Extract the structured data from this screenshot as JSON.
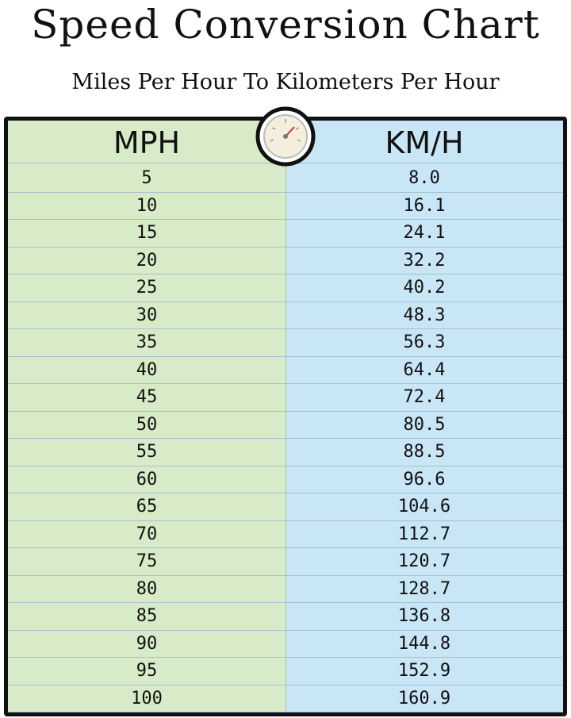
{
  "header": {
    "title": "Speed Conversion Chart",
    "subtitle": "Miles Per Hour To Kilometers Per Hour"
  },
  "table": {
    "columns": [
      "MPH",
      "KM/H"
    ],
    "rows": [
      [
        5,
        "8.0"
      ],
      [
        10,
        "16.1"
      ],
      [
        15,
        "24.1"
      ],
      [
        20,
        "32.2"
      ],
      [
        25,
        "40.2"
      ],
      [
        30,
        "48.3"
      ],
      [
        35,
        "56.3"
      ],
      [
        40,
        "64.4"
      ],
      [
        45,
        "72.4"
      ],
      [
        50,
        "80.5"
      ],
      [
        55,
        "88.5"
      ],
      [
        60,
        "96.6"
      ],
      [
        65,
        "104.6"
      ],
      [
        70,
        "112.7"
      ],
      [
        75,
        "120.7"
      ],
      [
        80,
        "128.7"
      ],
      [
        85,
        "136.8"
      ],
      [
        90,
        "144.8"
      ],
      [
        95,
        "152.9"
      ],
      [
        100,
        "160.9"
      ]
    ]
  }
}
